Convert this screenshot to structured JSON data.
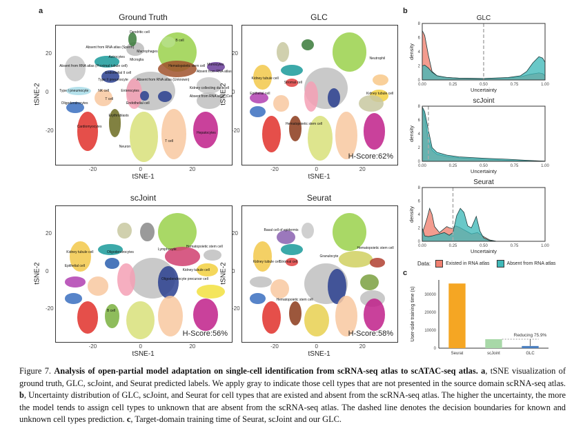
{
  "figure": {
    "panel_letters": {
      "a": "a",
      "b": "b",
      "c": "c"
    },
    "caption": {
      "figure_label": "Figure 7.",
      "title_bold": "Analysis of open-partial model adaptation on single-cell identification from scRNA-seq atlas to scATAC-seq atlas.",
      "a_label": "a",
      "a_text": ", tSNE visualization of ground truth, GLC, scJoint, and Seurat predicted labels. We apply gray to indicate those cell types that are not presented in the source domain scRNA-seq atlas.",
      "b_label": "b",
      "b_text": ", Uncertainty distribution of GLC, scJoint, and Seurat for cell types that are existed and absent from the scRNA-seq atlas. The higher the uncertainty, the more the model tends to assign cell types to unknown that are absent from the scRNA-seq atlas. The dashed line denotes the decision boundaries for known and unknown cell types prediction.",
      "c_label": "c",
      "c_text": ", Target-domain training time of Seurat, scJoint and our GLC."
    }
  },
  "tsne_panels": [
    {
      "title": "Ground Truth",
      "xlabel": "tSNE-1",
      "ylabel": "tSNE-2",
      "xticks": [
        "-20",
        "0",
        "20"
      ],
      "yticks": [
        "20",
        "0",
        "-20"
      ],
      "hscore": "",
      "labels": [
        "Dendritic cell",
        "Absent from RNA atlas (Sperm)",
        "B cell",
        "Macrophages",
        "Monocytes",
        "Astrocytes",
        "Microglia",
        "Absent from RNA atlas (Proximal tubule cell)",
        "Endothelial II cell",
        "Hematopoietic stem cell",
        "Absent from RNA atlas (Loop of henle)",
        "Type II pneumocyte",
        "Absent from RNA atlas (Unknown)",
        "Type I pneumocyte",
        "NK cell",
        "Enterocytes",
        "Kidney collecting duct cell",
        "T cell",
        "Absent from RNA atlas (Cerebellar granule cell)",
        "Oligodendrocytes",
        "Endothelial cell",
        "Erythroblasts",
        "Cardiomyocytes",
        "T cell",
        "Hepatocytes",
        "Neuron"
      ]
    },
    {
      "title": "GLC",
      "xlabel": "tSNE-1",
      "ylabel": "tSNE-2",
      "xticks": [
        "-20",
        "0",
        "20"
      ],
      "yticks": [
        "20",
        "0",
        "-20"
      ],
      "hscore": "H-Score:62%",
      "labels": [
        "Neutrophil",
        "Kidney tubule cell",
        "Stromal cell",
        "Epithelial cell",
        "Kidney tubule cell",
        "Hematopoietic stem cell"
      ]
    },
    {
      "title": "scJoint",
      "xlabel": "tSNE-1",
      "ylabel": "tSNE-2",
      "xticks": [
        "-20",
        "0",
        "20"
      ],
      "yticks": [
        "20",
        "0",
        "-20"
      ],
      "hscore": "H-Score:56%",
      "labels": [
        "Hematopoietic stem cell",
        "Lymphocyte",
        "Kidney tubule cell",
        "Oligodendrocytes",
        "Epithelial cell",
        "Kidney tubule cell",
        "Oligodendrocyte precursor cell",
        "B cell"
      ]
    },
    {
      "title": "Seurat",
      "xlabel": "tSNE-1",
      "ylabel": "tSNE-2",
      "xticks": [
        "-20",
        "0",
        "20"
      ],
      "yticks": [
        "20",
        "0",
        "-20"
      ],
      "hscore": "H-Score:58%",
      "labels": [
        "Basal cell of epidermis",
        "Hematopoietic stem cell",
        "Granulocyte",
        "Kidney tubule cell",
        "Stromal cell",
        "Hematopoietic stem cell"
      ]
    }
  ],
  "legend": {
    "title": "Data:",
    "items": [
      {
        "label": "Existed in RNA atlas",
        "color": "#f08070"
      },
      {
        "label": "Absent from RNA atlas",
        "color": "#3fb8b8"
      }
    ]
  },
  "chart_data": [
    {
      "type": "area",
      "title": "GLC",
      "xlabel": "Uncertainty",
      "ylabel": "density",
      "xlim": [
        0,
        1
      ],
      "ylim": [
        0,
        8
      ],
      "xticks": [
        "0.00",
        "0.25",
        "0.50",
        "0.75",
        "1.00"
      ],
      "yticks": [
        "0",
        "2",
        "4",
        "6",
        "8"
      ],
      "decision_boundary": 0.5,
      "series": [
        {
          "name": "Existed in RNA atlas",
          "x": [
            0,
            0.02,
            0.05,
            0.08,
            0.12,
            0.2,
            0.3,
            0.5,
            0.7,
            0.8,
            0.88,
            0.95,
            0.98,
            1.0
          ],
          "y": [
            7.0,
            6.3,
            3.5,
            1.2,
            0.6,
            0.35,
            0.25,
            0.2,
            0.3,
            0.45,
            0.8,
            1.0,
            0.9,
            0.6
          ]
        },
        {
          "name": "Absent from RNA atlas",
          "x": [
            0,
            0.02,
            0.05,
            0.08,
            0.12,
            0.2,
            0.3,
            0.5,
            0.7,
            0.8,
            0.85,
            0.9,
            0.95,
            0.98,
            1.0
          ],
          "y": [
            2.0,
            2.1,
            1.7,
            1.1,
            0.6,
            0.35,
            0.25,
            0.2,
            0.35,
            0.6,
            1.2,
            2.4,
            3.3,
            3.1,
            2.5
          ]
        }
      ]
    },
    {
      "type": "area",
      "title": "scJoint",
      "xlabel": "Uncertainty",
      "ylabel": "density",
      "xlim": [
        0,
        1
      ],
      "ylim": [
        0,
        8
      ],
      "xticks": [
        "0.00",
        "0.25",
        "0.50",
        "0.75",
        "1.00"
      ],
      "yticks": [
        "0",
        "2",
        "4",
        "6",
        "8"
      ],
      "decision_boundary": 0.05,
      "series": [
        {
          "name": "Existed in RNA atlas",
          "x": [
            0,
            0.02,
            0.05,
            0.08,
            0.12,
            0.2,
            0.3,
            0.5,
            0.7,
            0.85,
            1.0
          ],
          "y": [
            7.8,
            6.5,
            3.0,
            1.6,
            1.0,
            0.7,
            0.5,
            0.3,
            0.15,
            0.08,
            0.02
          ]
        },
        {
          "name": "Absent from RNA atlas",
          "x": [
            0,
            0.02,
            0.05,
            0.08,
            0.12,
            0.2,
            0.3,
            0.5,
            0.7,
            0.85,
            1.0
          ],
          "y": [
            7.9,
            7.2,
            4.5,
            2.0,
            1.3,
            0.9,
            0.65,
            0.45,
            0.3,
            0.15,
            0.03
          ]
        }
      ]
    },
    {
      "type": "area",
      "title": "Seurat",
      "xlabel": "Uncertainty",
      "ylabel": "density",
      "xlim": [
        0,
        1
      ],
      "ylim": [
        0,
        8
      ],
      "xticks": [
        "0.00",
        "0.25",
        "0.50",
        "0.75",
        "1.00"
      ],
      "yticks": [
        "0",
        "2",
        "4",
        "6",
        "8"
      ],
      "decision_boundary": 0.25,
      "series": [
        {
          "name": "Existed in RNA atlas",
          "x": [
            0,
            0.02,
            0.04,
            0.06,
            0.08,
            0.1,
            0.14,
            0.18,
            0.2,
            0.22,
            0.25,
            0.27,
            0.3,
            0.35,
            0.4,
            0.45,
            0.5,
            0.55,
            0.6,
            1.0
          ],
          "y": [
            1.2,
            2.3,
            3.5,
            4.9,
            4.0,
            2.2,
            1.3,
            1.9,
            2.2,
            2.0,
            1.9,
            2.3,
            2.1,
            1.6,
            1.1,
            1.3,
            0.7,
            0.2,
            0.02,
            0.0
          ]
        },
        {
          "name": "Absent from RNA atlas",
          "x": [
            0,
            0.02,
            0.05,
            0.08,
            0.12,
            0.18,
            0.22,
            0.25,
            0.28,
            0.31,
            0.34,
            0.37,
            0.4,
            0.44,
            0.47,
            0.5,
            0.55,
            0.6,
            1.0
          ],
          "y": [
            2.0,
            0.8,
            0.7,
            0.8,
            1.0,
            1.3,
            0.9,
            1.3,
            3.8,
            4.9,
            4.3,
            2.3,
            2.0,
            3.7,
            1.5,
            0.5,
            0.1,
            0.0,
            0.0
          ]
        }
      ]
    },
    {
      "type": "bar",
      "title": "",
      "xlabel": "",
      "ylabel": "User-side training time (s)",
      "categories": [
        "Seurat",
        "scJoint",
        "GLC"
      ],
      "values": [
        36000,
        5000,
        1200
      ],
      "colors": [
        "#f5a623",
        "#a8d8a8",
        "#4a7fc0"
      ],
      "ylim": [
        0,
        38000
      ],
      "yticks": [
        "0",
        "10000",
        "20000",
        "30000"
      ],
      "annotation": "Reducing 75.9%"
    }
  ]
}
